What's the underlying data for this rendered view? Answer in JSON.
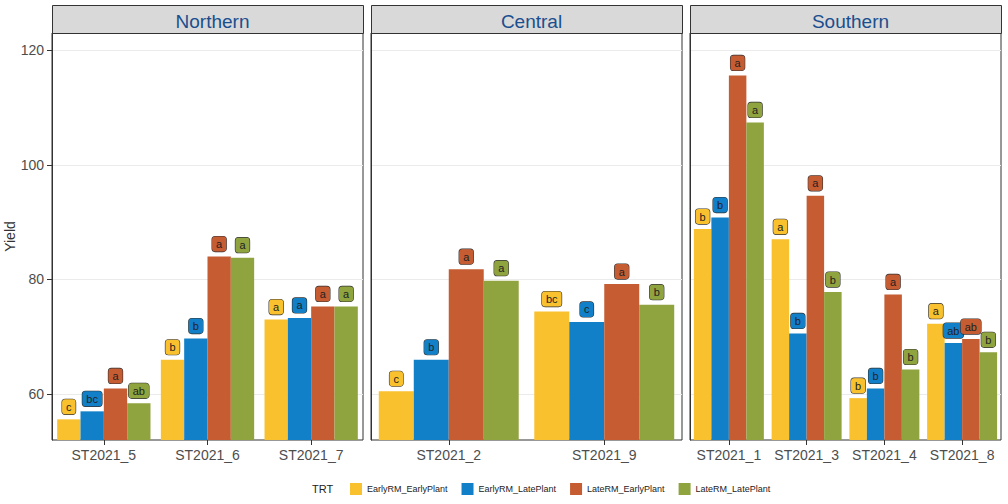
{
  "chart_data": [
    {
      "type": "bar",
      "title": "Northern",
      "ylabel": "Yield",
      "legend_title": "TRT",
      "legend": "bottom",
      "categories": [
        "ST2021_5",
        "ST2021_6",
        "ST2021_7"
      ],
      "ylim": [
        52,
        123
      ],
      "yticks": [
        60,
        80,
        100,
        120
      ],
      "grid": true,
      "series": [
        {
          "name": "EarlyRM_EarlyPlant",
          "color": "#F9C12E",
          "values": [
            55.6,
            66,
            73
          ],
          "annotations": [
            "c",
            "b",
            "a"
          ]
        },
        {
          "name": "EarlyRM_LatePlant",
          "color": "#1180C8",
          "values": [
            57,
            69.7,
            73.3
          ],
          "annotations": [
            "bc",
            "b",
            "a"
          ]
        },
        {
          "name": "LateRM_EarlyPlant",
          "color": "#C65C32",
          "values": [
            61,
            84,
            75.3
          ],
          "annotations": [
            "a",
            "a",
            "a"
          ]
        },
        {
          "name": "LateRM_LatePlant",
          "color": "#8FA33F",
          "values": [
            58.4,
            83.8,
            75.3
          ],
          "annotations": [
            "ab",
            "a",
            "a"
          ]
        }
      ]
    },
    {
      "type": "bar",
      "title": "Central",
      "categories": [
        "ST2021_2",
        "ST2021_9"
      ],
      "ylim": [
        52,
        123
      ],
      "yticks": [
        60,
        80,
        100,
        120
      ],
      "grid": true,
      "series": [
        {
          "name": "EarlyRM_EarlyPlant",
          "color": "#F9C12E",
          "values": [
            60.5,
            74.4
          ],
          "annotations": [
            "c",
            "bc"
          ]
        },
        {
          "name": "EarlyRM_LatePlant",
          "color": "#1180C8",
          "values": [
            66,
            72.6
          ],
          "annotations": [
            "b",
            "c"
          ]
        },
        {
          "name": "LateRM_EarlyPlant",
          "color": "#C65C32",
          "values": [
            81.8,
            79.2
          ],
          "annotations": [
            "a",
            "a"
          ]
        },
        {
          "name": "LateRM_LatePlant",
          "color": "#8FA33F",
          "values": [
            79.8,
            75.6
          ],
          "annotations": [
            "a",
            "b"
          ]
        }
      ]
    },
    {
      "type": "bar",
      "title": "Southern",
      "categories": [
        "ST2021_1",
        "ST2021_3",
        "ST2021_4",
        "ST2021_8"
      ],
      "ylim": [
        52,
        123
      ],
      "yticks": [
        60,
        80,
        100,
        120
      ],
      "grid": true,
      "series": [
        {
          "name": "EarlyRM_EarlyPlant",
          "color": "#F9C12E",
          "values": [
            88.8,
            87,
            59.3,
            72.3
          ],
          "annotations": [
            "b",
            "a",
            "b",
            "a"
          ]
        },
        {
          "name": "EarlyRM_LatePlant",
          "color": "#1180C8",
          "values": [
            90.8,
            70.6,
            61,
            68.9
          ],
          "annotations": [
            "b",
            "b",
            "b",
            "ab"
          ]
        },
        {
          "name": "LateRM_EarlyPlant",
          "color": "#C65C32",
          "values": [
            115.6,
            94.6,
            77.4,
            69.6
          ],
          "annotations": [
            "a",
            "a",
            "a",
            "ab"
          ]
        },
        {
          "name": "LateRM_LatePlant",
          "color": "#8FA33F",
          "values": [
            107.4,
            77.8,
            64.3,
            67.3
          ],
          "annotations": [
            "a",
            "b",
            "b",
            "b"
          ]
        }
      ]
    }
  ]
}
